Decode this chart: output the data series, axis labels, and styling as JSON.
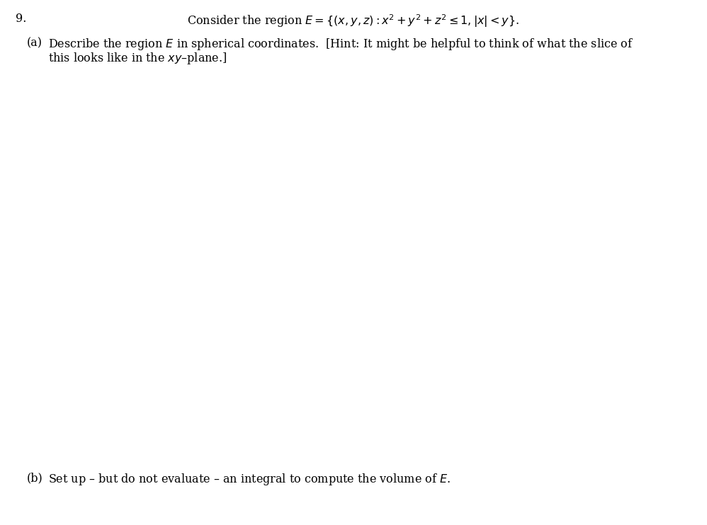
{
  "background_color": "#ffffff",
  "problem_number": "9.",
  "problem_number_fontsize": 11.5,
  "title_text": "Consider the region $E = \\{(x, y, z) : x^2 + y^2 + z^2 \\leq 1, |x| < y\\}$.",
  "title_fontsize": 11.5,
  "part_a_label": "(a)",
  "part_a_line1": "Describe the region $E$ in spherical coordinates.  [Hint: It might be helpful to think of what the slice of",
  "part_a_line2": "this looks like in the $xy$–plane.]",
  "part_a_fontsize": 11.5,
  "part_b_label": "(b)",
  "part_b_text": "Set up – but do not evaluate – an integral to compute the volume of $E$.",
  "part_b_fontsize": 11.5
}
